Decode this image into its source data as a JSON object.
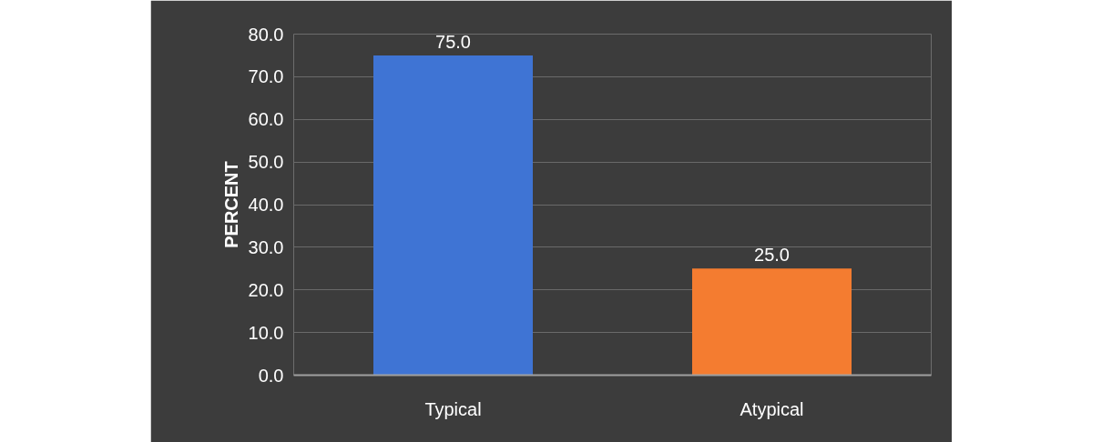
{
  "chart_data": {
    "type": "bar",
    "ylabel": "PERCENT",
    "categories": [
      "Typical",
      "Atypical"
    ],
    "values": [
      75.0,
      25.0
    ],
    "colors": [
      "#3f74d4",
      "#f47c30"
    ],
    "ylim": [
      0,
      80
    ],
    "yticks": [
      {
        "value": 0,
        "label": "0.0"
      },
      {
        "value": 10,
        "label": "10.0"
      },
      {
        "value": 20,
        "label": "20.0"
      },
      {
        "value": 30,
        "label": "30.0"
      },
      {
        "value": 40,
        "label": "40.0"
      },
      {
        "value": 50,
        "label": "50.0"
      },
      {
        "value": 60,
        "label": "60.0"
      },
      {
        "value": 70,
        "label": "70.0"
      },
      {
        "value": 80,
        "label": "80.0"
      }
    ],
    "value_labels": [
      "75.0",
      "25.0"
    ],
    "grid": "y"
  }
}
